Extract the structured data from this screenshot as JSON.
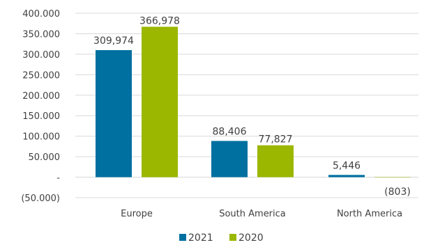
{
  "chart_data": {
    "type": "bar",
    "categories": [
      "Europe",
      "South America",
      "North America"
    ],
    "series": [
      {
        "name": "2021",
        "values": [
          309974,
          88406,
          5446
        ],
        "labels": [
          "309,974",
          "88,406",
          "5,446"
        ],
        "color": "#0070a0"
      },
      {
        "name": "2020",
        "values": [
          366978,
          77827,
          -803
        ],
        "labels": [
          "366,978",
          "77,827",
          "(803)"
        ],
        "color": "#9bb700"
      }
    ],
    "ylim": [
      -50000,
      400000
    ],
    "yticks": [
      {
        "value": 400000,
        "label": "400.000"
      },
      {
        "value": 350000,
        "label": "350.000"
      },
      {
        "value": 300000,
        "label": "300.000"
      },
      {
        "value": 250000,
        "label": "250.000"
      },
      {
        "value": 200000,
        "label": "200.000"
      },
      {
        "value": 150000,
        "label": "150.000"
      },
      {
        "value": 100000,
        "label": "100.000"
      },
      {
        "value": 50000,
        "label": "50.000"
      },
      {
        "value": 0,
        "label": "-"
      },
      {
        "value": -50000,
        "label": "(50.000)"
      }
    ],
    "grid": true,
    "legend": "bottom"
  }
}
